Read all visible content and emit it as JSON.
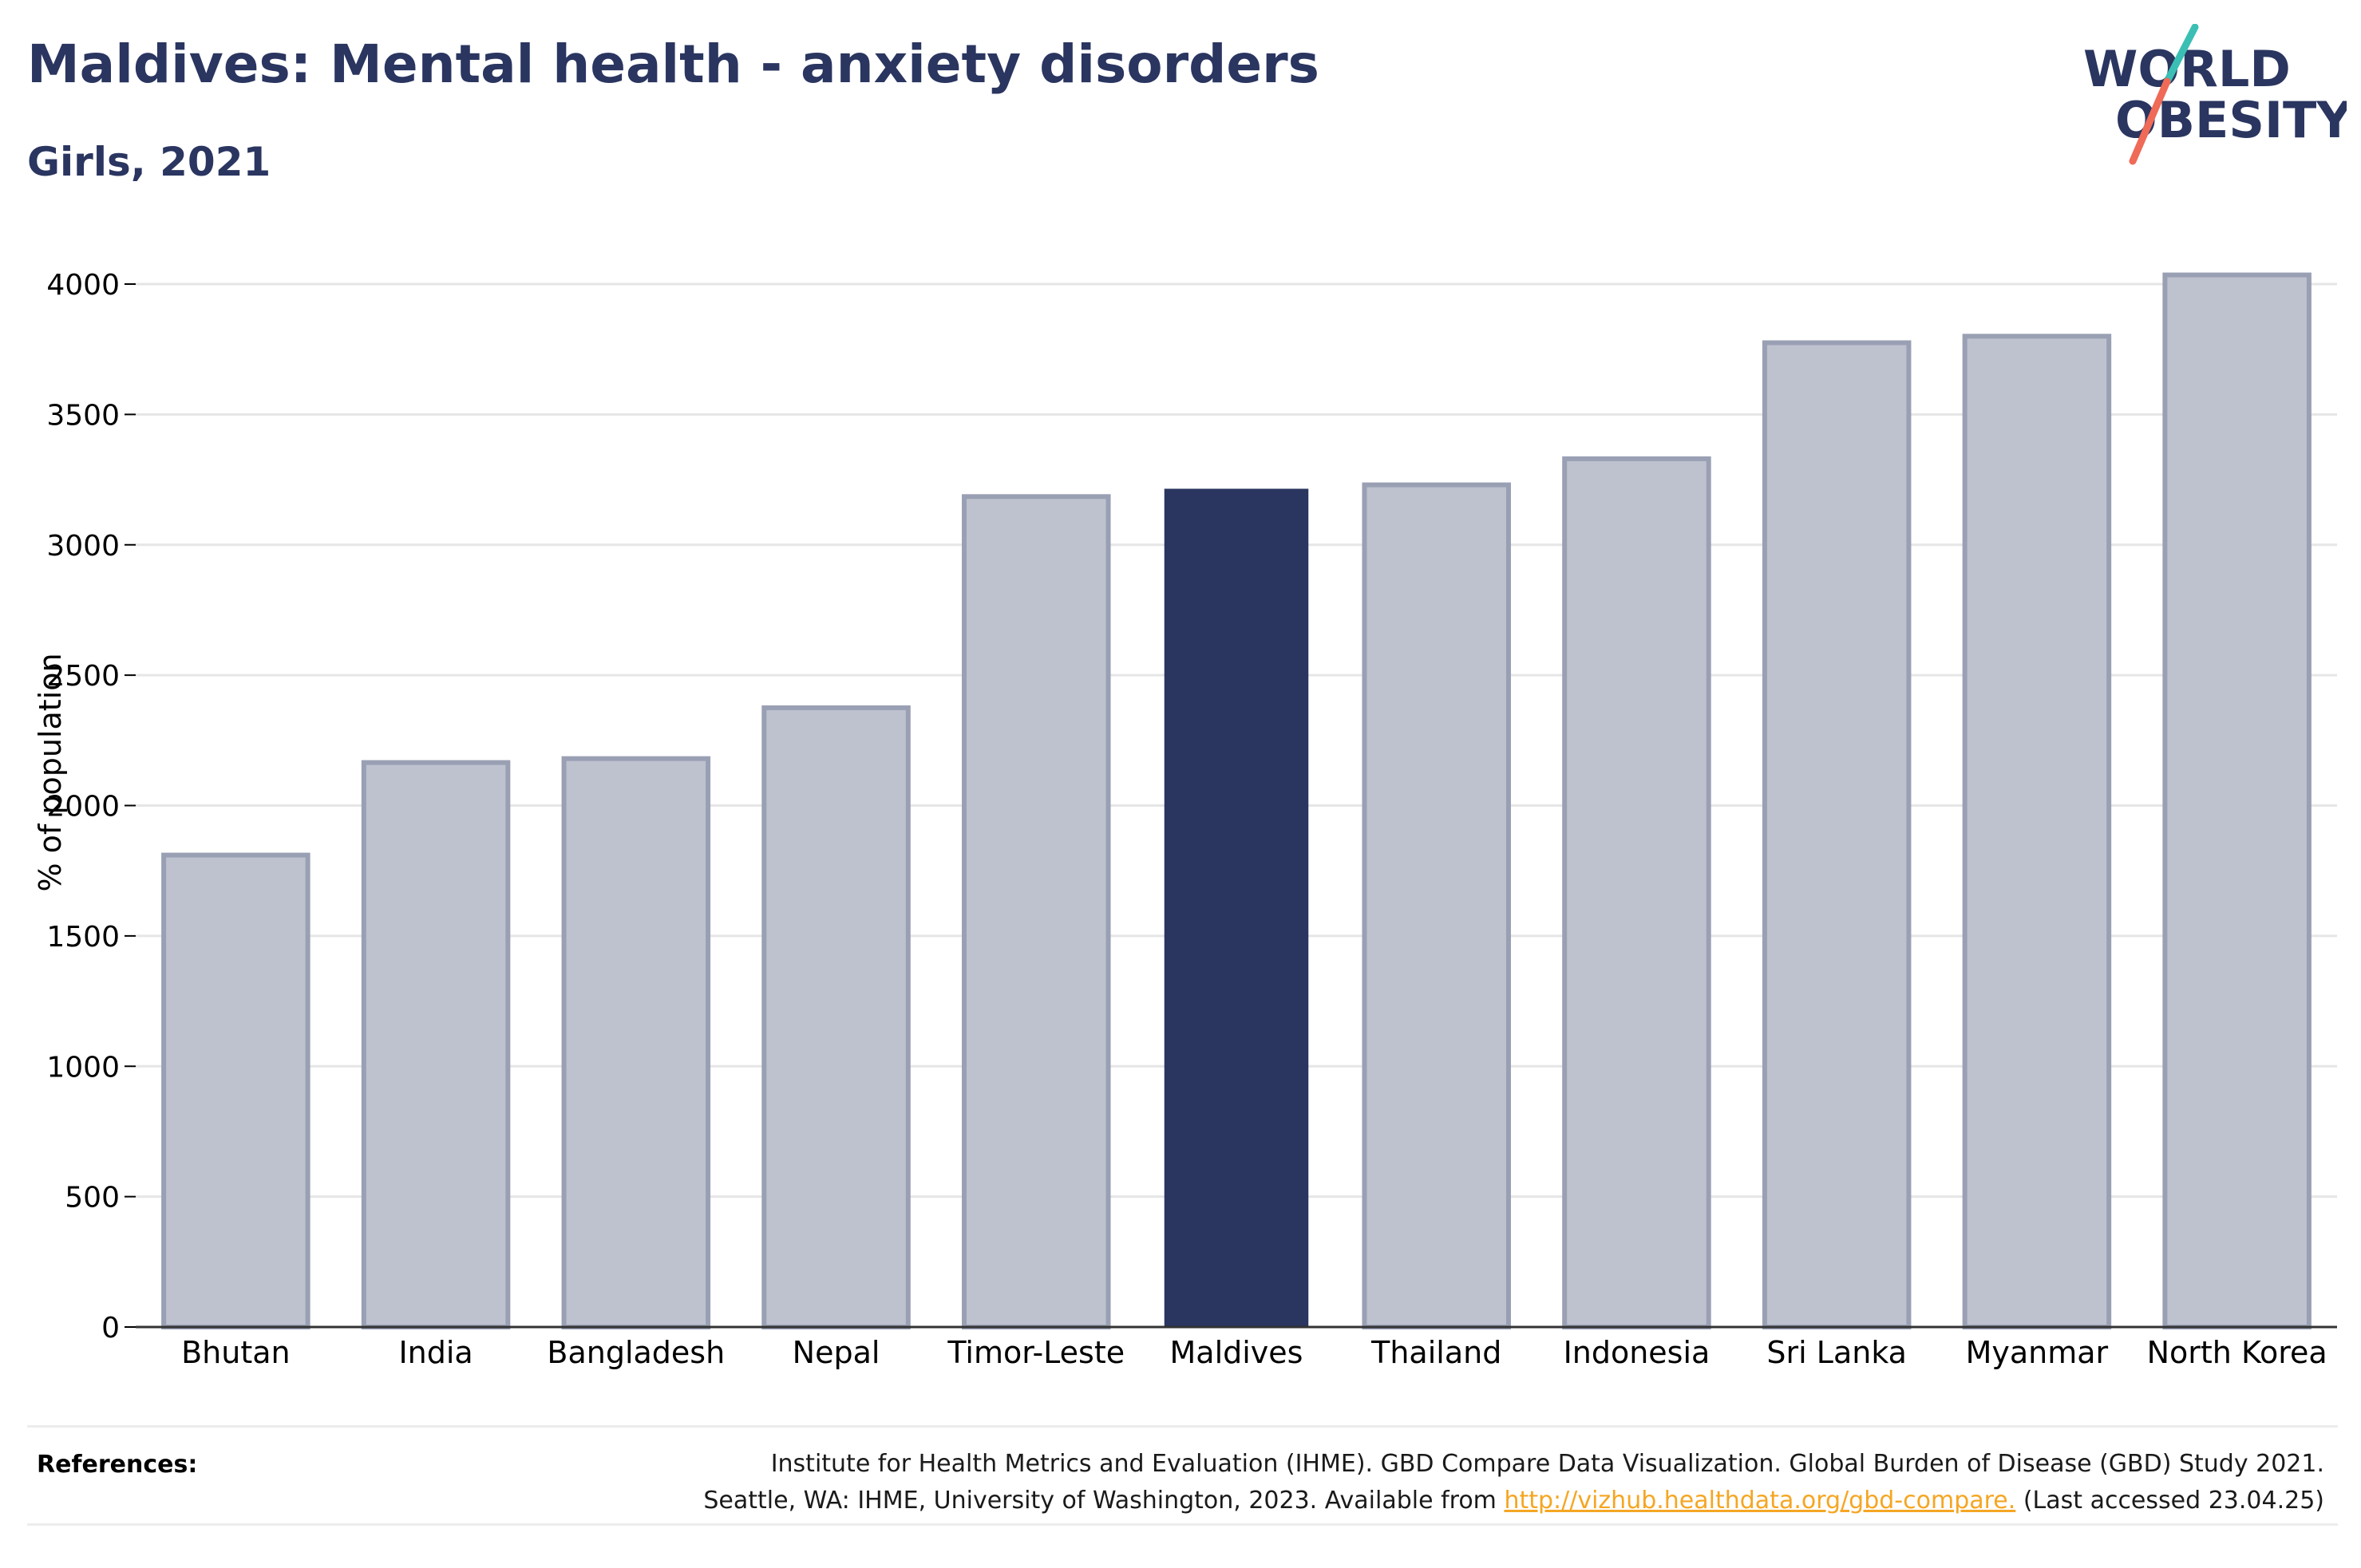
{
  "header": {
    "title": "Maldives: Mental health - anxiety disorders",
    "subtitle": "Girls, 2021"
  },
  "logo": {
    "line1": "WORLD",
    "line2": "OBESITY",
    "accent_teal": "#3bbfb4",
    "accent_coral": "#ef6a57",
    "text_color": "#2a3560"
  },
  "colors": {
    "highlight": "#2a3560",
    "bar_fill": "#bec2cf",
    "bar_stroke": "#9aa0b4",
    "grid": "#e6e6e6",
    "axis": "#000000"
  },
  "chart_data": {
    "type": "bar",
    "title": "Maldives: Mental health - anxiety disorders",
    "subtitle": "Girls, 2021",
    "xlabel": "",
    "ylabel": "% of population",
    "categories": [
      "Bhutan",
      "India",
      "Bangladesh",
      "Nepal",
      "Timor-Leste",
      "Maldives",
      "Thailand",
      "Indonesia",
      "Sri Lanka",
      "Myanmar",
      "North Korea"
    ],
    "values": [
      1810,
      2165,
      2180,
      2375,
      3185,
      3215,
      3230,
      3330,
      3775,
      3800,
      4035
    ],
    "highlight": "Maldives",
    "ylim": [
      0,
      4000
    ],
    "yticks": [
      0,
      500,
      1000,
      1500,
      2000,
      2500,
      3000,
      3500,
      4000
    ],
    "grid": true
  },
  "references": {
    "label": "References:",
    "line1": "Institute for Health Metrics and Evaluation (IHME). GBD Compare Data Visualization. Global Burden of Disease (GBD) Study 2021.",
    "line2_prefix": "Seattle, WA: IHME, University of Washington, 2023. Available from ",
    "link": "http://vizhub.healthdata.org/gbd-compare.",
    "line2_suffix": " (Last accessed 23.04.25)"
  }
}
